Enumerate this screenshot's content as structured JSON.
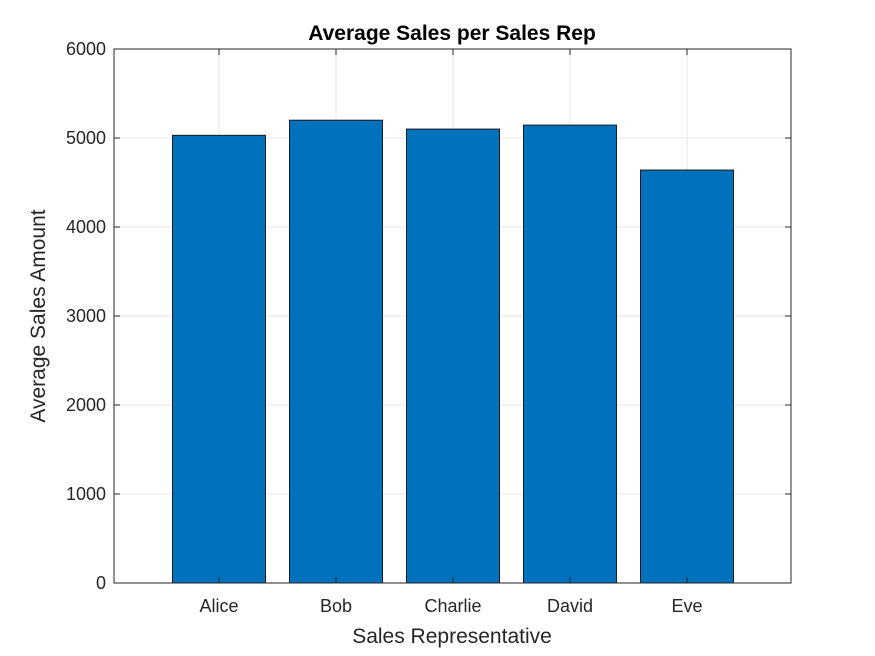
{
  "chart_data": {
    "type": "bar",
    "title": "Average Sales per Sales Rep",
    "xlabel": "Sales Representative",
    "ylabel": "Average Sales Amount",
    "categories": [
      "Alice",
      "Bob",
      "Charlie",
      "David",
      "Eve"
    ],
    "values": [
      5030,
      5200,
      5100,
      5145,
      4640
    ],
    "ylim": [
      0,
      6000
    ],
    "yticks": [
      0,
      1000,
      2000,
      3000,
      4000,
      5000,
      6000
    ],
    "grid": true,
    "bar_color": "#0072BD"
  }
}
